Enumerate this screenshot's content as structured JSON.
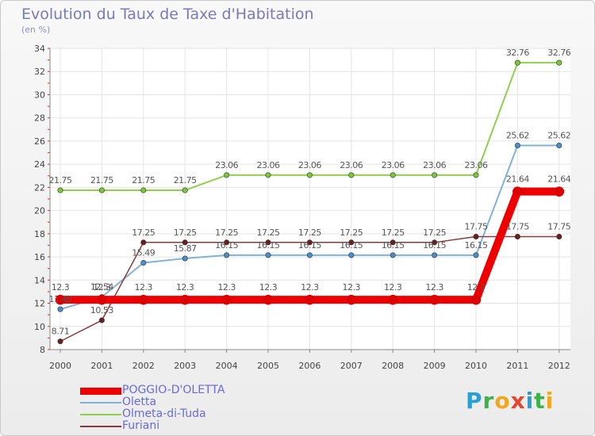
{
  "chart_data": {
    "type": "line",
    "title": "Evolution du Taux de Taxe d'Habitation",
    "subtitle": "(en %)",
    "categories": [
      "2000",
      "2001",
      "2002",
      "2003",
      "2004",
      "2005",
      "2006",
      "2007",
      "2008",
      "2009",
      "2010",
      "2011",
      "2012"
    ],
    "ylim": [
      8,
      34
    ],
    "yticks": [
      8,
      10,
      12,
      14,
      16,
      18,
      20,
      22,
      24,
      26,
      28,
      30,
      32,
      34
    ],
    "grid": true,
    "legend_position": "bottom-left",
    "series": [
      {
        "name": "Olmeta-di-Tuda",
        "color": "#8fd14f",
        "marker": "#7cc73a",
        "width": 2,
        "values": [
          21.75,
          21.75,
          21.75,
          21.75,
          23.06,
          23.06,
          23.06,
          23.06,
          23.06,
          23.06,
          23.06,
          32.76,
          32.76
        ],
        "labels": [
          "21.75",
          "21.75",
          "21.75",
          "21.75",
          "23.06",
          "23.06",
          "23.06",
          "23.06",
          "23.06",
          "23.06",
          "23.06",
          "32.76",
          "32.76"
        ]
      },
      {
        "name": "Oletta",
        "color": "#7fb3d9",
        "marker": "#4a8fc8",
        "width": 2,
        "values": [
          11.48,
          12.54,
          15.49,
          15.87,
          16.15,
          16.15,
          16.15,
          16.15,
          16.15,
          16.15,
          16.15,
          25.62,
          25.62
        ],
        "labels": [
          "11.48",
          "12.54",
          "15.49",
          "15.87",
          "16.15",
          "16.15",
          "16.15",
          "16.15",
          "16.15",
          "16.15",
          "16.15",
          "25.62",
          "25.62"
        ]
      },
      {
        "name": "Furiani",
        "color": "#8a3a3a",
        "marker": "#6a1f1f",
        "width": 1.5,
        "values": [
          8.71,
          10.53,
          17.25,
          17.25,
          17.25,
          17.25,
          17.25,
          17.25,
          17.25,
          17.25,
          17.75,
          17.75,
          17.75
        ],
        "labels": [
          "8.71",
          "10.53",
          "17.25",
          "17.25",
          "17.25",
          "17.25",
          "17.25",
          "17.25",
          "17.25",
          "17.25",
          "17.75",
          "17.75",
          "17.75"
        ]
      },
      {
        "name": "POGGIO-D'OLETTA",
        "color": "#ee0000",
        "marker": "#dd0000",
        "width": 10,
        "values": [
          12.3,
          12.3,
          12.3,
          12.3,
          12.3,
          12.3,
          12.3,
          12.3,
          12.3,
          12.3,
          12.3,
          21.64,
          21.64
        ],
        "labels": [
          "12.3",
          "12.3",
          "12.3",
          "12.3",
          "12.3",
          "12.3",
          "12.3",
          "12.3",
          "12.3",
          "12.3",
          "12.3",
          "21.64",
          "21.64"
        ]
      }
    ]
  },
  "legend": {
    "items": [
      {
        "name": "POGGIO-D'OLETTA",
        "color": "#ee0000"
      },
      {
        "name": "Oletta",
        "color": "#7fb3d9"
      },
      {
        "name": "Olmeta-di-Tuda",
        "color": "#8fd14f"
      },
      {
        "name": "Furiani",
        "color": "#8a3a3a"
      }
    ]
  },
  "brand": {
    "letters": [
      {
        "ch": "P",
        "color": "#2a9fd6"
      },
      {
        "ch": "r",
        "color": "#3fb24a"
      },
      {
        "ch": "o",
        "color": "#f2a61d"
      },
      {
        "ch": "x",
        "color": "#e8452c"
      },
      {
        "ch": "i",
        "color": "#2a9fd6"
      },
      {
        "ch": "t",
        "color": "#3fb24a"
      },
      {
        "ch": "i",
        "color": "#f2a61d"
      }
    ]
  }
}
